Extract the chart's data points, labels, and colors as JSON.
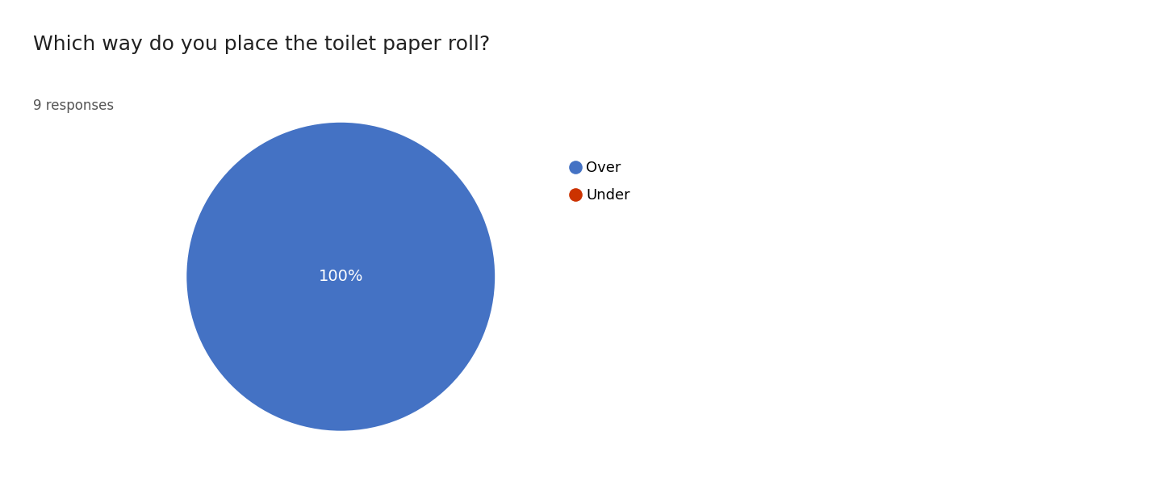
{
  "title": "Which way do you place the toilet paper roll?",
  "subtitle": "9 responses",
  "labels": [
    "Over",
    "Under"
  ],
  "colors": [
    "#4472C4",
    "#CC3300"
  ],
  "pct_label": "100%",
  "pct_label_color": "white",
  "pct_label_fontsize": 14,
  "title_fontsize": 18,
  "subtitle_fontsize": 12,
  "title_color": "#212121",
  "subtitle_color": "#555555",
  "background_color": "#ffffff",
  "legend_fontsize": 13
}
